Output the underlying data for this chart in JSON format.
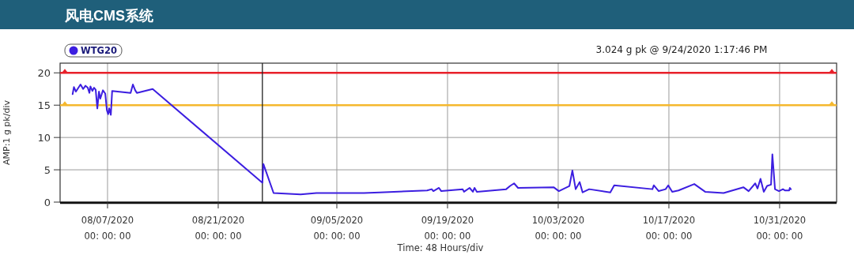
{
  "chart_data": {
    "type": "line",
    "title": "风电CMS系统",
    "ylabel": "AMP:1 g pk/div",
    "xlabel": "Time: 48 Hours/div",
    "annotations": [
      "3.024 g pk @ 9/24/2020 1:17:46 PM"
    ],
    "legend": "top left",
    "grid": true,
    "marker": "none",
    "line_style": "solid",
    "xlim": [
      "2020-08-01T00:00",
      "2020-11-07T05:00"
    ],
    "xticks": [
      {
        "value": "2020-08-07",
        "label": "08/07/2020\n00: 00: 00"
      },
      {
        "value": "2020-08-21",
        "label": "08/21/2020\n00: 00: 00"
      },
      {
        "value": "2020-09-05",
        "label": "09/05/2020\n00: 00: 00"
      },
      {
        "value": "2020-09-19",
        "label": "09/19/2020\n00: 00: 00"
      },
      {
        "value": "2020-10-03",
        "label": "10/03/2020\n00: 00: 00"
      },
      {
        "value": "2020-10-17",
        "label": "10/17/2020\n00: 00: 00"
      },
      {
        "value": "2020-10-31",
        "label": "10/31/2020\n00: 00: 00"
      }
    ],
    "ylim": [
      0,
      21.5
    ],
    "yticks": [
      0,
      5,
      10,
      15,
      20
    ],
    "ref_lines": [
      {
        "axis": "y",
        "value": 20,
        "label": null,
        "color": "#e8202a"
      },
      {
        "axis": "y",
        "value": 15,
        "label": null,
        "color": "#f5b82e"
      },
      {
        "axis": "x",
        "value": "2020-08-26T14:00",
        "label": null,
        "color": "#222222"
      }
    ],
    "series": [
      {
        "name": "WTG20",
        "color": "#3c1ee0",
        "x": [
          "2020-08-02T14:00",
          "2020-08-02T18:00",
          "2020-08-03T00:00",
          "2020-08-03T14:00",
          "2020-08-03T22:00",
          "2020-08-04T05:00",
          "2020-08-04T12:00",
          "2020-08-04T17:00",
          "2020-08-04T20:00",
          "2020-08-05T02:00",
          "2020-08-05T07:00",
          "2020-08-05T12:00",
          "2020-08-05T17:00",
          "2020-08-05T22:00",
          "2020-08-06T02:00",
          "2020-08-06T10:00",
          "2020-08-06T17:00",
          "2020-08-06T22:00",
          "2020-08-07T02:00",
          "2020-08-07T05:00",
          "2020-08-07T10:00",
          "2020-08-07T14:00",
          "2020-08-09T22:00",
          "2020-08-10T05:00",
          "2020-08-10T12:00",
          "2020-08-10T17:00",
          "2020-08-12T17:00",
          "2020-08-26T14:00",
          "2020-08-26T17:00",
          "2020-08-28T00:00",
          "2020-08-31T10:00",
          "2020-09-02T10:00",
          "2020-09-08T10:00",
          "2020-09-10T10:00",
          "2020-09-16T10:00",
          "2020-09-17T00:00",
          "2020-09-17T05:00",
          "2020-09-17T22:00",
          "2020-09-18T05:00",
          "2020-09-20T22:00",
          "2020-09-21T02:00",
          "2020-09-21T19:00",
          "2020-09-22T05:00",
          "2020-09-22T10:00",
          "2020-09-22T17:00",
          "2020-09-26T10:00",
          "2020-09-26T22:00",
          "2020-09-27T10:00",
          "2020-09-27T22:00",
          "2020-10-02T10:00",
          "2020-10-03T02:00",
          "2020-10-04T10:00",
          "2020-10-04T19:00",
          "2020-10-05T05:00",
          "2020-10-05T17:00",
          "2020-10-06T02:00",
          "2020-10-06T22:00",
          "2020-10-09T14:00",
          "2020-10-10T02:00",
          "2020-10-14T22:00",
          "2020-10-15T02:00",
          "2020-10-15T17:00",
          "2020-10-16T14:00",
          "2020-10-16T22:00",
          "2020-10-17T10:00",
          "2020-10-18T05:00",
          "2020-10-20T05:00",
          "2020-10-21T14:00",
          "2020-10-23T22:00",
          "2020-10-26T10:00",
          "2020-10-27T02:00",
          "2020-10-27T22:00",
          "2020-10-28T05:00",
          "2020-10-28T14:00",
          "2020-10-29T00:00",
          "2020-10-29T10:00",
          "2020-10-29T22:00",
          "2020-10-30T02:00",
          "2020-10-30T10:00",
          "2020-10-30T22:00",
          "2020-10-31T10:00",
          "2020-10-31T17:00",
          "2020-11-01T05:00",
          "2020-11-01T07:00",
          "2020-11-01T10:00"
        ],
        "values": [
          16.7,
          17.8,
          17.1,
          18.2,
          17.5,
          18.0,
          17.7,
          16.9,
          17.9,
          17.2,
          17.7,
          17.4,
          14.5,
          17.1,
          16.0,
          17.3,
          16.8,
          14.2,
          13.6,
          14.5,
          13.5,
          17.2,
          16.9,
          18.2,
          17.3,
          16.9,
          17.5,
          3.0,
          5.9,
          1.4,
          1.2,
          1.4,
          1.4,
          1.5,
          1.8,
          2.0,
          1.7,
          2.2,
          1.7,
          2.0,
          1.6,
          2.2,
          1.6,
          2.2,
          1.6,
          2.0,
          2.5,
          2.9,
          2.2,
          2.3,
          1.7,
          2.5,
          4.9,
          2.0,
          3.1,
          1.5,
          2.0,
          1.5,
          2.6,
          2.0,
          2.6,
          1.7,
          2.0,
          2.6,
          1.6,
          1.8,
          2.8,
          1.6,
          1.4,
          2.3,
          1.7,
          2.9,
          2.1,
          3.6,
          1.6,
          2.5,
          2.7,
          7.4,
          2.0,
          1.7,
          2.0,
          1.8,
          1.8,
          2.2,
          2.0
        ]
      }
    ]
  }
}
